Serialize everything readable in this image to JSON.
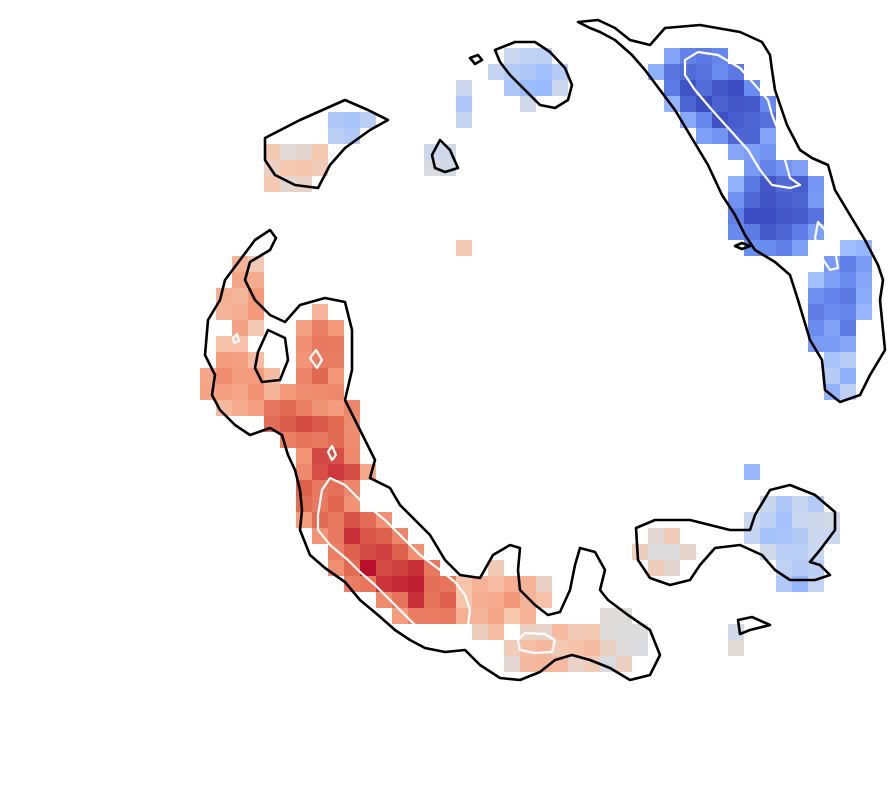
{
  "image": {
    "background_color": "#ffffff",
    "colormap": {
      "name": "coolwarm",
      "stops": [
        "#3b4cc0",
        "#6788ee",
        "#9abbff",
        "#c9d7f0",
        "#dddcdc",
        "#f6c6ad",
        "#f49a7b",
        "#e0654f",
        "#b40426"
      ]
    },
    "contour_colors": {
      "outer": "#000000",
      "inner": "#ffffff"
    }
  }
}
